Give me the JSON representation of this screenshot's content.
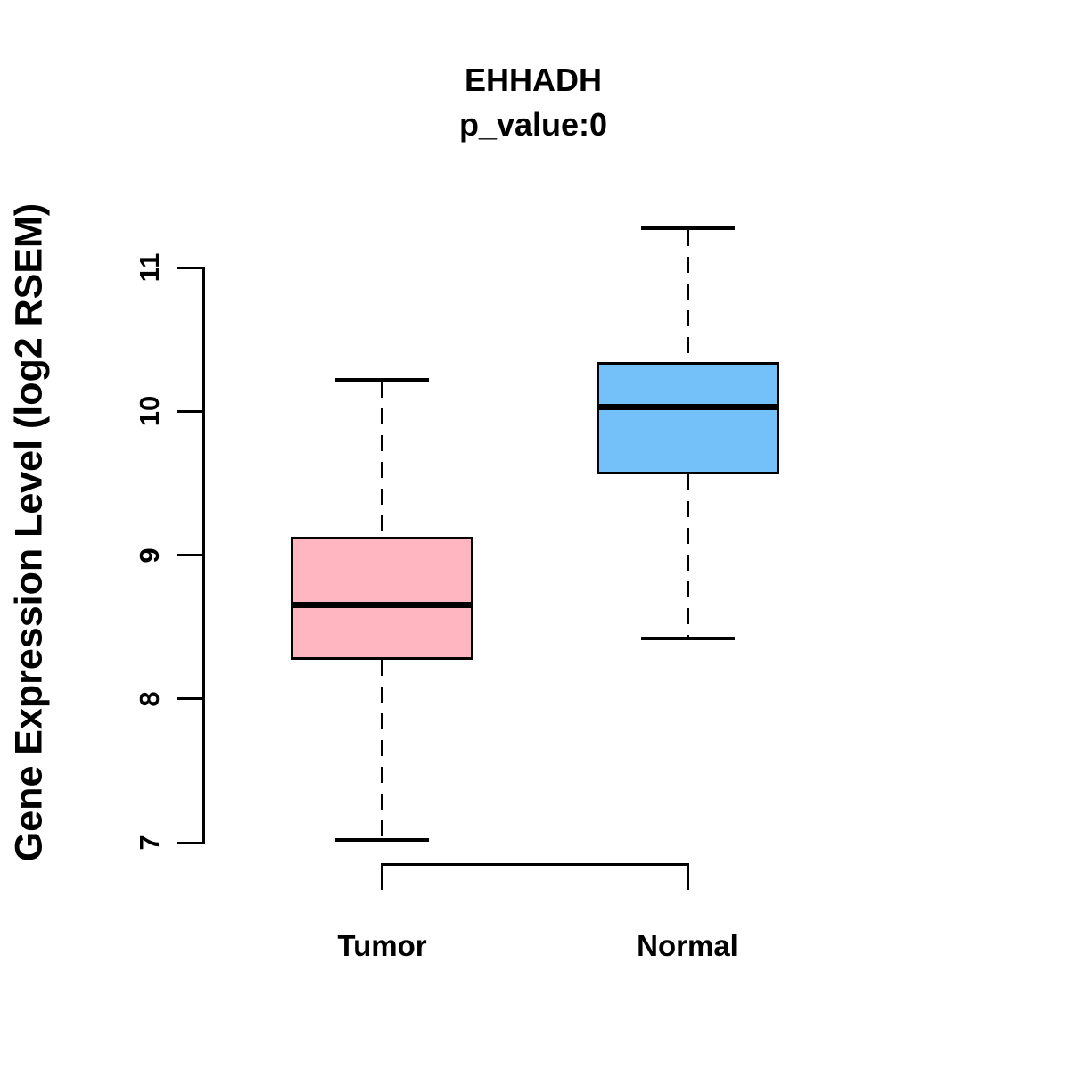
{
  "title": {
    "gene": "EHHADH",
    "pvalue_line": "p_value:0"
  },
  "y_axis": {
    "label": "Gene Expression Level (log2 RSEM)",
    "tick_labels": [
      "7",
      "8",
      "9",
      "10",
      "11"
    ]
  },
  "x_axis": {
    "categories": [
      "Tumor",
      "Normal"
    ]
  },
  "chart_data": {
    "type": "boxplot",
    "title": "EHHADH",
    "subtitle": "p_value:0",
    "xlabel": "",
    "ylabel": "Gene Expression Level (log2 RSEM)",
    "ylim": [
      7,
      11
    ],
    "yticks": [
      7,
      8,
      9,
      10,
      11
    ],
    "categories": [
      "Tumor",
      "Normal"
    ],
    "grid": false,
    "legend": "none",
    "series": [
      {
        "name": "Tumor",
        "fill_color": "#FFB6C1",
        "whisker_low": 7.02,
        "q1": 8.27,
        "median": 8.65,
        "q3": 9.13,
        "whisker_high": 10.22,
        "outliers": []
      },
      {
        "name": "Normal",
        "fill_color": "#74C0F8",
        "whisker_low": 8.42,
        "q1": 9.56,
        "median": 10.03,
        "q3": 10.34,
        "whisker_high": 11.27,
        "outliers": []
      }
    ],
    "colors": {
      "stroke": "#000000",
      "background": "#FFFFFF"
    }
  }
}
